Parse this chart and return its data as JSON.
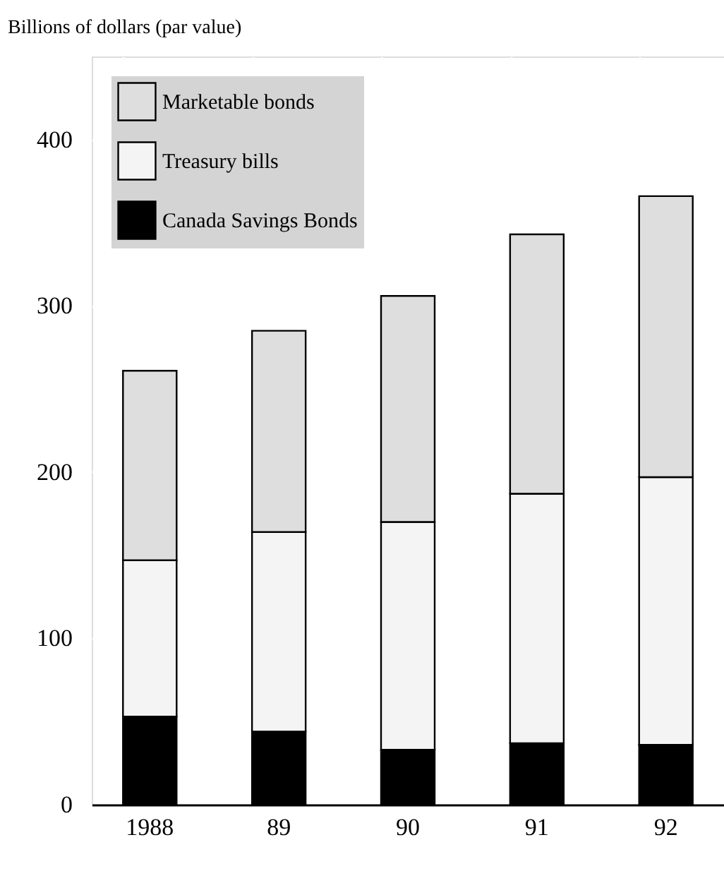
{
  "chart_data": {
    "type": "bar",
    "stacked": true,
    "ylabel": "Billions of dollars (par value)",
    "categories": [
      "1988",
      "89",
      "90",
      "91",
      "92"
    ],
    "series": [
      {
        "name": "Canada Savings Bonds",
        "color": "#000000",
        "values": [
          53,
          44,
          33,
          37,
          36
        ]
      },
      {
        "name": "Treasury bills",
        "color": "#f4f4f4",
        "values": [
          94,
          120,
          137,
          150,
          161
        ]
      },
      {
        "name": "Marketable bonds",
        "color": "#dedede",
        "values": [
          114,
          121,
          136,
          156,
          169
        ]
      }
    ],
    "ylim": [
      0,
      450
    ],
    "yticks": [
      0,
      100,
      200,
      300,
      400
    ],
    "grid": true,
    "legend": "top left"
  }
}
